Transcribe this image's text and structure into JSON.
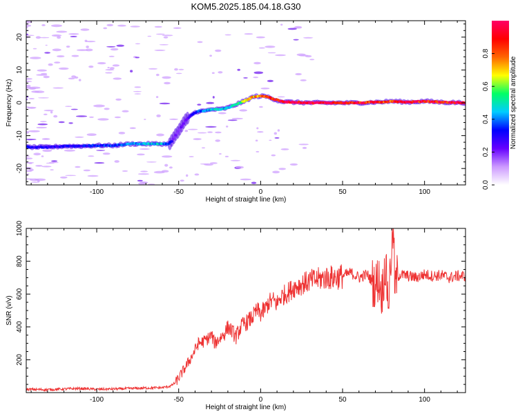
{
  "title": "KOM5.2025.185.04.18.G30",
  "chart_data": [
    {
      "type": "heatmap",
      "title": "KOM5.2025.185.04.18.G30",
      "xlabel": "Height of straight line (km)",
      "ylabel": "Frequency (Hz)",
      "xlim": [
        -143,
        125
      ],
      "ylim": [
        -25,
        25
      ],
      "x_ticks": [
        -100,
        -50,
        0,
        50,
        100
      ],
      "y_ticks": [
        -20,
        -10,
        0,
        10,
        20
      ],
      "colorbar": {
        "label": "Normalized spectral amplitude",
        "range": [
          0,
          1
        ],
        "ticks": [
          "0.0",
          "0.2",
          "0.4",
          "0.6",
          "0.8"
        ],
        "colormap": [
          "#ffffff",
          "#cc99ff",
          "#6600ff",
          "#0000ff",
          "#00ccff",
          "#00ff66",
          "#ffff00",
          "#ff6600",
          "#ff0000",
          "#ff0066"
        ]
      },
      "ridge": {
        "name": "frequency trace",
        "x": [
          -143,
          -130,
          -120,
          -110,
          -100,
          -90,
          -80,
          -70,
          -65,
          -60,
          -56,
          -54,
          -52,
          -50,
          -48,
          -46,
          -42,
          -38,
          -34,
          -30,
          -25,
          -20,
          -15,
          -10,
          -6,
          -3,
          0,
          3,
          6,
          9,
          12,
          15,
          20,
          30,
          40,
          50,
          60,
          70,
          75,
          80,
          90,
          100,
          110,
          125
        ],
        "y": [
          -13.5,
          -13.5,
          -13.2,
          -13.2,
          -13.0,
          -13.0,
          -12.5,
          -12.5,
          -12.5,
          -12.5,
          -12.5,
          -11.5,
          -10.0,
          -8.5,
          -7.0,
          -5.5,
          -3.5,
          -2.5,
          -2.5,
          -2.0,
          -2.0,
          -1.5,
          -0.5,
          0.5,
          1.5,
          2.0,
          2.0,
          2.0,
          1.5,
          1.0,
          0.5,
          0.3,
          0.2,
          0.0,
          0.0,
          0.0,
          0.0,
          0.2,
          0.3,
          0.5,
          0.2,
          0.5,
          0.2,
          0.0
        ],
        "amplitude": [
          0.3,
          0.3,
          0.3,
          0.3,
          0.35,
          0.35,
          0.4,
          0.45,
          0.45,
          0.45,
          0.35,
          0.25,
          0.2,
          0.2,
          0.2,
          0.2,
          0.3,
          0.35,
          0.4,
          0.45,
          0.45,
          0.45,
          0.5,
          0.6,
          0.7,
          0.75,
          0.8,
          0.85,
          0.85,
          0.9,
          0.9,
          0.95,
          0.95,
          0.95,
          0.95,
          0.95,
          0.9,
          0.85,
          0.85,
          0.85,
          0.9,
          0.9,
          0.9,
          0.9
        ]
      }
    },
    {
      "type": "line",
      "xlabel": "Height of straight line (km)",
      "ylabel": "SNR (v/v)",
      "xlim": [
        -143,
        125
      ],
      "ylim": [
        0,
        1000
      ],
      "x_ticks": [
        -100,
        -50,
        0,
        50,
        100
      ],
      "y_ticks": [
        200,
        400,
        600,
        800,
        1000
      ],
      "color": "#ee3333",
      "series": [
        {
          "x": [
            -143,
            -130,
            -120,
            -110,
            -100,
            -90,
            -80,
            -70,
            -60,
            -55,
            -52,
            -50,
            -48,
            -45,
            -42,
            -40,
            -38,
            -35,
            -32,
            -30,
            -28,
            -25,
            -22,
            -20,
            -18,
            -15,
            -12,
            -10,
            -8,
            -5,
            -2,
            0,
            3,
            5,
            8,
            10,
            12,
            15,
            18,
            20,
            25,
            30,
            35,
            40,
            45,
            50,
            55,
            60,
            65,
            70,
            72,
            74,
            76,
            78,
            80,
            81,
            82,
            83,
            85,
            90,
            95,
            100,
            105,
            110,
            115,
            120,
            125
          ],
          "y": [
            20,
            18,
            22,
            25,
            20,
            22,
            25,
            28,
            30,
            40,
            60,
            90,
            120,
            170,
            220,
            260,
            300,
            310,
            330,
            350,
            300,
            330,
            360,
            400,
            380,
            340,
            400,
            420,
            430,
            460,
            500,
            480,
            510,
            550,
            560,
            540,
            580,
            600,
            620,
            640,
            660,
            680,
            690,
            700,
            700,
            710,
            730,
            700,
            720,
            650,
            700,
            600,
            780,
            550,
            900,
            1000,
            600,
            700,
            720,
            710,
            700,
            720,
            710,
            715,
            700,
            710,
            710
          ]
        }
      ]
    }
  ]
}
